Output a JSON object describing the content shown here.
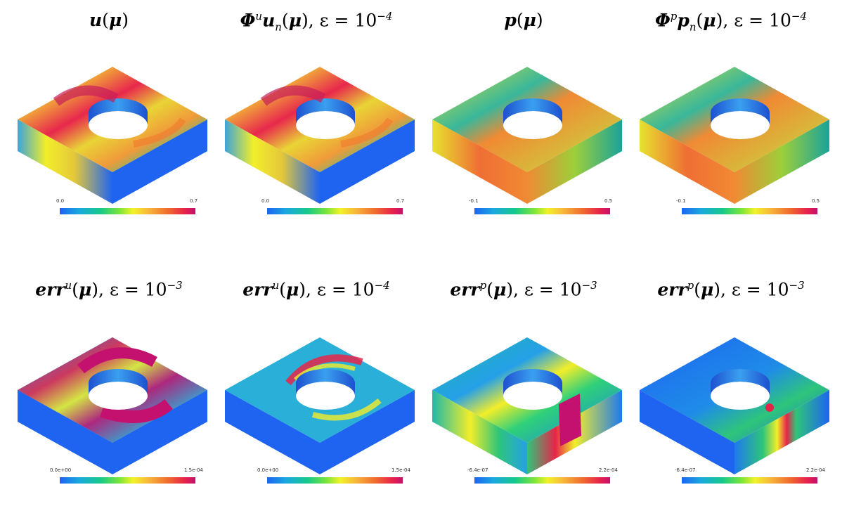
{
  "panels": [
    {
      "id": "u",
      "title_bold": "u(μ)",
      "title_rest": "",
      "colorbar": {
        "min": "0.0",
        "max": "0.7"
      }
    },
    {
      "id": "phi-u",
      "title_bold": "Φ",
      "title_rest": "u",
      "colorbar": {
        "min": "0.0",
        "max": "0.7"
      }
    },
    {
      "id": "p",
      "title_bold": "p(μ)",
      "title_rest": "",
      "colorbar": {
        "min": "-0.1",
        "max": "0.5"
      }
    },
    {
      "id": "phi-p",
      "title_bold": "Φ",
      "title_rest": "p",
      "colorbar": {
        "min": "-0.1",
        "max": "0.5"
      }
    },
    {
      "id": "err-u-1e-3",
      "colorbar": {
        "min": "0.0e+00",
        "max": "1.5e-04"
      }
    },
    {
      "id": "err-u-1e-4",
      "colorbar": {
        "min": "0.0e+00",
        "max": "1.5e-04"
      }
    },
    {
      "id": "err-p-1e-3",
      "colorbar": {
        "min": "-6.4e-07",
        "max": "2.2e-04"
      }
    },
    {
      "id": "err-p-1e-3-b",
      "colorbar": {
        "min": "-6.4e-07",
        "max": "2.2e-04"
      }
    }
  ],
  "titles": {
    "t0": {
      "a": "u",
      "b": "(",
      "c": "μ",
      "d": ")"
    },
    "t1": {
      "a": "Φ",
      "sup": "u",
      "b": "u",
      "sub": "n",
      "c": "(",
      "d": "μ",
      "e": "), ε = 10",
      "exp": "−4"
    },
    "t2": {
      "a": "p",
      "b": "(",
      "c": "μ",
      "d": ")"
    },
    "t3": {
      "a": "Φ",
      "sup": "p",
      "b": "p",
      "sub": "n",
      "c": "(",
      "d": "μ",
      "e": "), ε = 10",
      "exp": "−4"
    },
    "t4": {
      "a": "err",
      "sup": "u",
      "c": "(",
      "d": "μ",
      "e": "), ε = 10",
      "exp": "−3"
    },
    "t5": {
      "a": "err",
      "sup": "u",
      "c": "(",
      "d": "μ",
      "e": "), ε = 10",
      "exp": "−4"
    },
    "t6": {
      "a": "err",
      "sup": "p",
      "c": "(",
      "d": "μ",
      "e": "), ε = 10",
      "exp": "−3"
    },
    "t7": {
      "a": "err",
      "sup": "p",
      "c": "(",
      "d": "μ",
      "e": "), ε = 10",
      "exp": "−3"
    }
  },
  "colors": {
    "blue": "#1e64f0",
    "green": "#1fc57a",
    "yellow": "#f2ee2a",
    "orange": "#f07a2e",
    "red": "#e8244a",
    "magenta": "#c4106e",
    "teal": "#1aa39a"
  }
}
